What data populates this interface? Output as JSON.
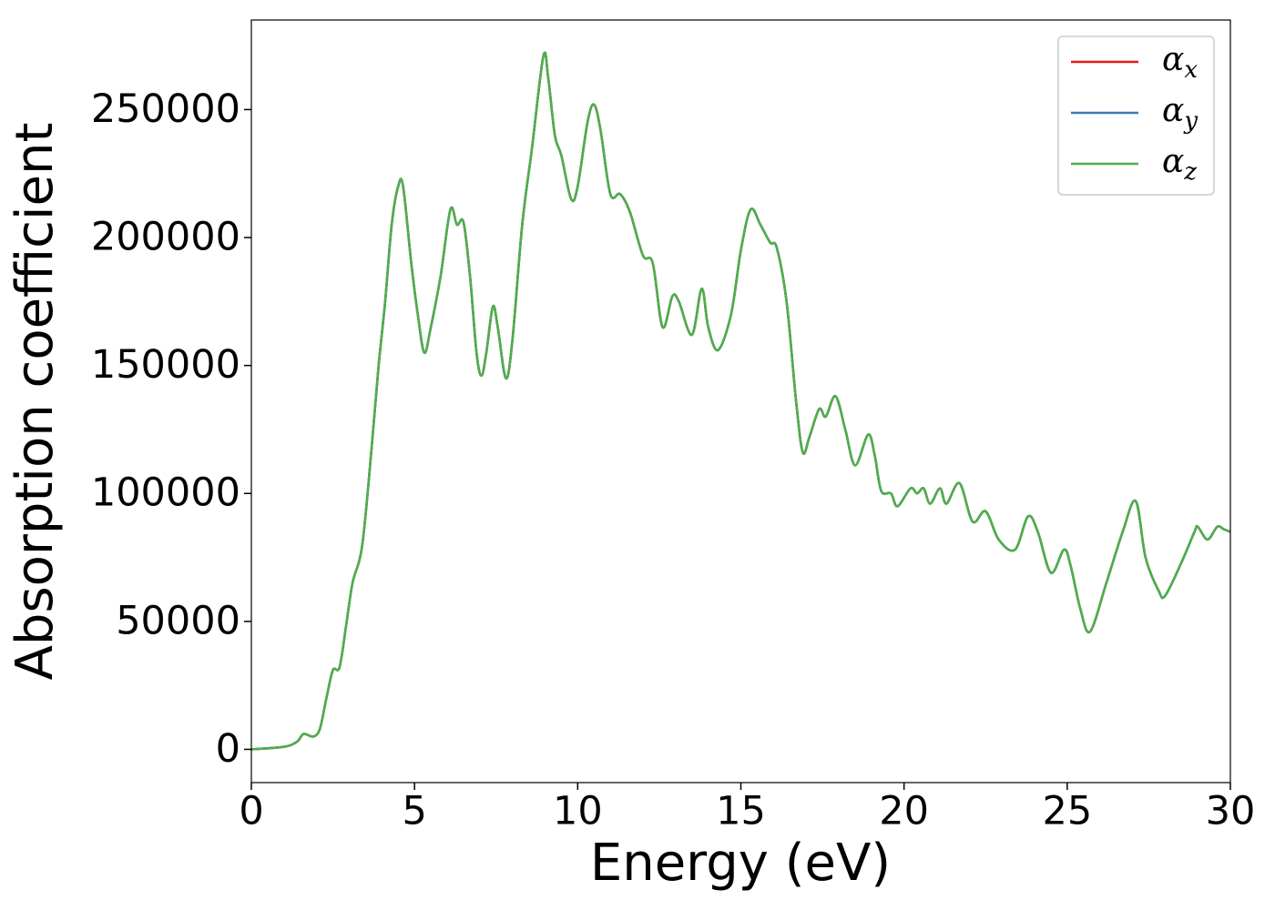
{
  "chart_data": {
    "type": "line",
    "xlabel": "Energy (eV)",
    "ylabel": "Absorption coefficient",
    "x": [
      0,
      1.0,
      1.4,
      1.6,
      1.9,
      2.1,
      2.3,
      2.5,
      2.7,
      2.9,
      3.1,
      3.4,
      3.7,
      3.9,
      4.1,
      4.3,
      4.5,
      4.65,
      4.9,
      5.1,
      5.3,
      5.5,
      5.8,
      6.1,
      6.3,
      6.5,
      6.7,
      6.9,
      7.05,
      7.2,
      7.4,
      7.55,
      7.8,
      8.0,
      8.3,
      8.6,
      8.95,
      9.1,
      9.3,
      9.5,
      9.8,
      10.0,
      10.3,
      10.5,
      10.7,
      11.0,
      11.3,
      11.6,
      12.0,
      12.3,
      12.6,
      12.9,
      13.1,
      13.5,
      13.8,
      14.0,
      14.3,
      14.7,
      15.0,
      15.3,
      15.6,
      15.9,
      16.1,
      16.4,
      16.7,
      16.9,
      17.1,
      17.4,
      17.6,
      17.9,
      18.2,
      18.5,
      18.9,
      19.1,
      19.3,
      19.6,
      19.8,
      20.2,
      20.4,
      20.6,
      20.8,
      21.1,
      21.3,
      21.7,
      22.1,
      22.5,
      22.9,
      23.4,
      23.8,
      24.1,
      24.5,
      24.9,
      25.1,
      25.4,
      25.7,
      26.2,
      26.7,
      27.1,
      27.4,
      27.8,
      28.0,
      28.5,
      28.9,
      29.0,
      29.3,
      29.6,
      29.8,
      30
    ],
    "series": [
      {
        "name": "αx",
        "color": "#e41a1c",
        "values": [
          0,
          1000,
          3000,
          6000,
          5000,
          8000,
          20000,
          31000,
          32000,
          48000,
          65000,
          80000,
          120000,
          150000,
          175000,
          205000,
          220000,
          220000,
          190000,
          170000,
          155000,
          165000,
          185000,
          211000,
          205000,
          206000,
          185000,
          155000,
          146000,
          155000,
          173000,
          165000,
          145000,
          160000,
          205000,
          235000,
          271000,
          262000,
          240000,
          232000,
          215000,
          220000,
          245000,
          252000,
          242000,
          217000,
          217000,
          210000,
          193000,
          190000,
          165000,
          177000,
          175000,
          162000,
          180000,
          165000,
          156000,
          170000,
          195000,
          211000,
          205000,
          198000,
          196000,
          175000,
          135000,
          116000,
          122000,
          133000,
          130000,
          138000,
          125000,
          111000,
          123000,
          115000,
          101000,
          100000,
          95000,
          102000,
          100000,
          102000,
          96000,
          102000,
          96000,
          104000,
          89000,
          93000,
          82000,
          78000,
          91000,
          85000,
          69000,
          78000,
          72000,
          55000,
          46000,
          65000,
          85000,
          97000,
          75000,
          62000,
          60000,
          73000,
          85000,
          87000,
          82000,
          87000,
          86000,
          85000
        ]
      },
      {
        "name": "αy",
        "color": "#377eb8",
        "values": [
          0,
          1000,
          3000,
          6000,
          5000,
          8000,
          20000,
          31000,
          32000,
          48000,
          65000,
          80000,
          120000,
          150000,
          175000,
          205000,
          220000,
          220000,
          190000,
          170000,
          155000,
          165000,
          185000,
          211000,
          205000,
          206000,
          185000,
          155000,
          146000,
          155000,
          173000,
          165000,
          145000,
          160000,
          205000,
          235000,
          271000,
          262000,
          240000,
          232000,
          215000,
          220000,
          245000,
          252000,
          242000,
          217000,
          217000,
          210000,
          193000,
          190000,
          165000,
          177000,
          175000,
          162000,
          180000,
          165000,
          156000,
          170000,
          195000,
          211000,
          205000,
          198000,
          196000,
          175000,
          135000,
          116000,
          122000,
          133000,
          130000,
          138000,
          125000,
          111000,
          123000,
          115000,
          101000,
          100000,
          95000,
          102000,
          100000,
          102000,
          96000,
          102000,
          96000,
          104000,
          89000,
          93000,
          82000,
          78000,
          91000,
          85000,
          69000,
          78000,
          72000,
          55000,
          46000,
          65000,
          85000,
          97000,
          75000,
          62000,
          60000,
          73000,
          85000,
          87000,
          82000,
          87000,
          86000,
          85000
        ]
      },
      {
        "name": "αz",
        "color": "#4daf4a",
        "values": [
          0,
          1000,
          3000,
          6000,
          5000,
          8000,
          20000,
          31000,
          32000,
          48000,
          65000,
          80000,
          120000,
          150000,
          175000,
          205000,
          220000,
          220000,
          190000,
          170000,
          155000,
          165000,
          185000,
          211000,
          205000,
          206000,
          185000,
          155000,
          146000,
          155000,
          173000,
          165000,
          145000,
          160000,
          205000,
          235000,
          271000,
          262000,
          240000,
          232000,
          215000,
          220000,
          245000,
          252000,
          242000,
          217000,
          217000,
          210000,
          193000,
          190000,
          165000,
          177000,
          175000,
          162000,
          180000,
          165000,
          156000,
          170000,
          195000,
          211000,
          205000,
          198000,
          196000,
          175000,
          135000,
          116000,
          122000,
          133000,
          130000,
          138000,
          125000,
          111000,
          123000,
          115000,
          101000,
          100000,
          95000,
          102000,
          100000,
          102000,
          96000,
          102000,
          96000,
          104000,
          89000,
          93000,
          82000,
          78000,
          91000,
          85000,
          69000,
          78000,
          72000,
          55000,
          46000,
          65000,
          85000,
          97000,
          75000,
          62000,
          60000,
          73000,
          85000,
          87000,
          82000,
          87000,
          86000,
          85000
        ]
      }
    ],
    "xlim": [
      0,
      30
    ],
    "xticks": [
      0,
      5,
      10,
      15,
      20,
      25,
      30
    ],
    "ylim": [
      -13000,
      285000
    ],
    "yticks": [
      0,
      50000,
      100000,
      150000,
      200000,
      250000
    ],
    "legend": "upper right",
    "grid": false
  }
}
